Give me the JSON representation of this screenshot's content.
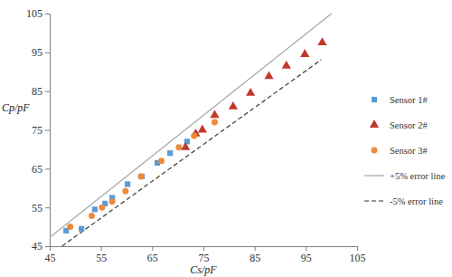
{
  "chart_data": {
    "type": "scatter",
    "x_label": "Cs/pF",
    "y_label": "Cp/pF",
    "xlim": [
      45,
      105
    ],
    "ylim": [
      45,
      105
    ],
    "xticks": [
      45,
      55,
      65,
      75,
      85,
      95,
      105
    ],
    "yticks": [
      45,
      55,
      65,
      75,
      85,
      95,
      105
    ],
    "grid": false,
    "legend": "right",
    "series": [
      {
        "name": "Sensor 1#",
        "type": "scatter",
        "color": "#5b9bd5",
        "marker": "square",
        "x": [
          48.2,
          51.2,
          53.8,
          55.8,
          57.2,
          60.2,
          63.0,
          66.0,
          68.5,
          71.8
        ],
        "values": [
          49.0,
          49.5,
          54.5,
          56.0,
          57.5,
          61.0,
          63.0,
          66.5,
          69.0,
          72.0
        ]
      },
      {
        "name": "Sensor 2#",
        "type": "scatter",
        "color": "#c0392b",
        "marker": "triangle",
        "x": [
          71.5,
          73.5,
          74.8,
          77.2,
          80.8,
          84.2,
          87.8,
          91.2,
          94.8,
          98.2
        ],
        "values": [
          70.5,
          74.0,
          75.0,
          78.8,
          81.0,
          84.5,
          88.8,
          91.5,
          94.5,
          97.5
        ]
      },
      {
        "name": "Sensor 3#",
        "type": "scatter",
        "color": "#ed8b3a",
        "marker": "circle",
        "x": [
          49.0,
          53.2,
          55.2,
          57.2,
          59.8,
          62.8,
          66.8,
          70.2,
          73.2,
          77.2
        ],
        "values": [
          50.0,
          52.8,
          55.0,
          56.5,
          59.2,
          63.0,
          67.0,
          70.5,
          73.5,
          77.0
        ]
      },
      {
        "name": "+5% error line",
        "type": "line",
        "color": "#a6a6a6",
        "line_style": "solid",
        "x": [
          45,
          100
        ],
        "values": [
          47.25,
          105
        ]
      },
      {
        "name": "-5% error line",
        "type": "line",
        "color": "#333333",
        "line_style": "dashed",
        "x": [
          47.4,
          98
        ],
        "values": [
          45.03,
          93.1
        ]
      }
    ]
  }
}
